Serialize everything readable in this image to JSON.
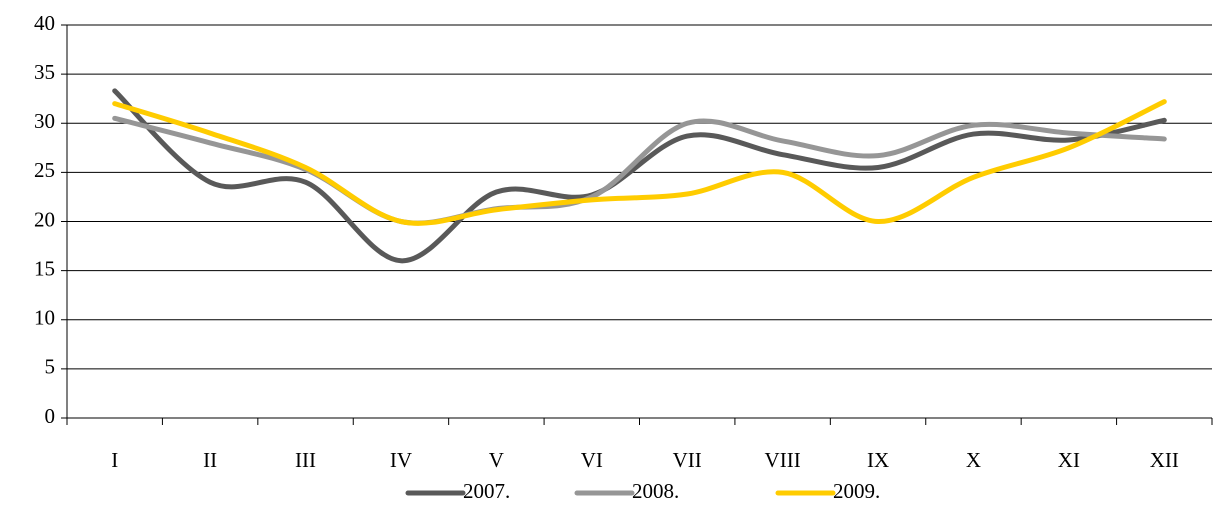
{
  "chart_data": {
    "type": "line",
    "categories": [
      "I",
      "II",
      "III",
      "IV",
      "V",
      "VI",
      "VII",
      "VIII",
      "IX",
      "X",
      "XI",
      "XII"
    ],
    "series": [
      {
        "name": "2007.",
        "color": "#595959",
        "values": [
          33.3,
          24,
          24,
          16,
          23,
          22.7,
          28.7,
          26.8,
          25.5,
          28.9,
          28.3,
          30.3
        ]
      },
      {
        "name": "2008.",
        "color": "#969696",
        "values": [
          30.5,
          28,
          25.3,
          20,
          21.3,
          22.5,
          30,
          28.2,
          26.7,
          29.8,
          29,
          28.4
        ]
      },
      {
        "name": "2009.",
        "color": "#ffcc00",
        "values": [
          32,
          29,
          25.5,
          20,
          21.2,
          22.2,
          22.8,
          25,
          20,
          24.5,
          27.5,
          32.2
        ]
      }
    ],
    "ylim": [
      0,
      40
    ],
    "yticks": [
      0,
      5,
      10,
      15,
      20,
      25,
      30,
      35,
      40
    ],
    "grid": true,
    "legend": "bottom"
  }
}
